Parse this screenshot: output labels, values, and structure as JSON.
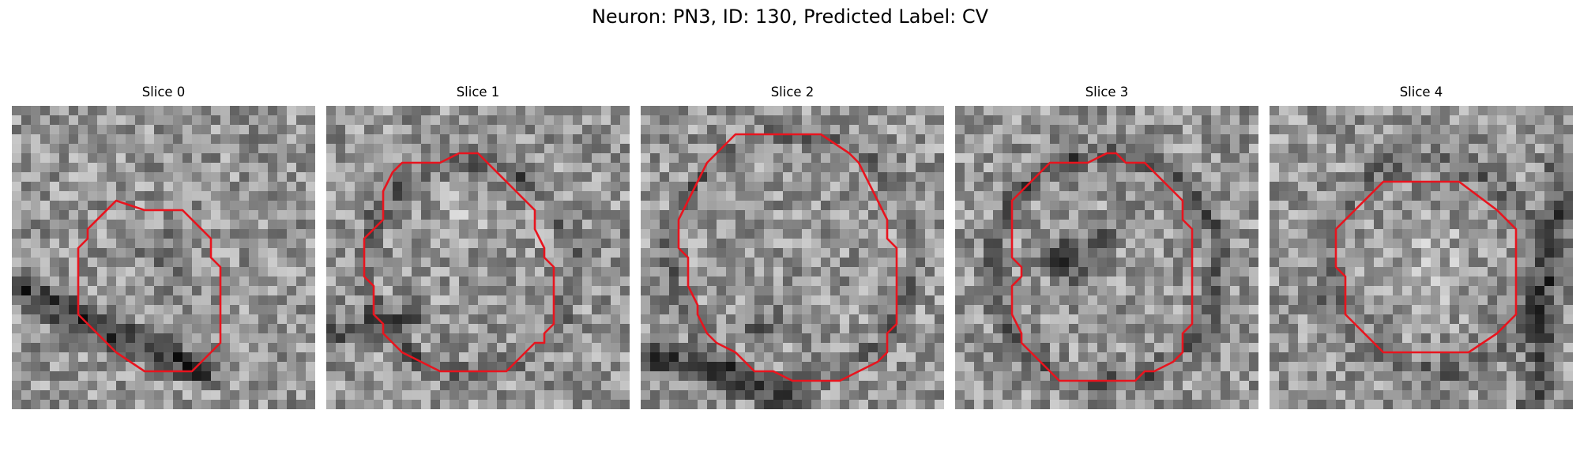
{
  "figure": {
    "title": "Neuron: PN3, ID: 130, Predicted Label: CV"
  },
  "slices": [
    {
      "title": "Slice 0"
    },
    {
      "title": "Slice 1"
    },
    {
      "title": "Slice 2"
    },
    {
      "title": "Slice 3"
    },
    {
      "title": "Slice 4"
    }
  ],
  "colors": {
    "contour": "#e8141e",
    "background": "#ffffff"
  }
}
